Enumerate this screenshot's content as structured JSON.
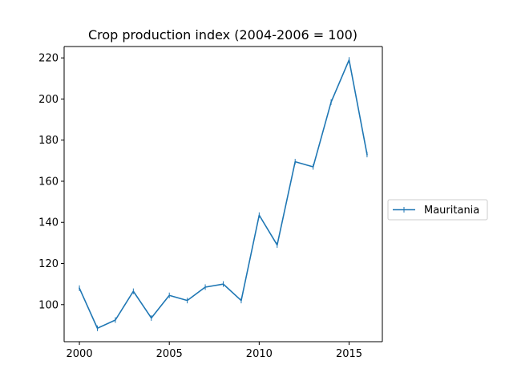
{
  "chart_data": {
    "type": "line",
    "title": "Crop production index (2004-2006 = 100)",
    "xlabel": "",
    "ylabel": "",
    "x": [
      2000,
      2001,
      2002,
      2003,
      2004,
      2005,
      2006,
      2007,
      2008,
      2009,
      2010,
      2011,
      2012,
      2013,
      2014,
      2015,
      2016
    ],
    "series": [
      {
        "name": "Mauritania",
        "color": "#1f77b4",
        "marker": "vertical-tick",
        "values": [
          108,
          88.5,
          92.5,
          106.5,
          93.5,
          104.5,
          102,
          108.5,
          110,
          102,
          143.5,
          129,
          169.5,
          167,
          198.5,
          219,
          173
        ]
      }
    ],
    "x_ticks": [
      2000,
      2005,
      2010,
      2015
    ],
    "x_tick_labels": [
      "2000",
      "2005",
      "2010",
      "2015"
    ],
    "y_ticks": [
      100,
      120,
      140,
      160,
      180,
      200,
      220
    ],
    "y_tick_labels": [
      "100",
      "120",
      "140",
      "160",
      "180",
      "200",
      "220"
    ],
    "xlim": [
      1999.15,
      2016.85
    ],
    "ylim": [
      81.97,
      225.53
    ],
    "grid": false,
    "legend_position": "outside-right"
  }
}
